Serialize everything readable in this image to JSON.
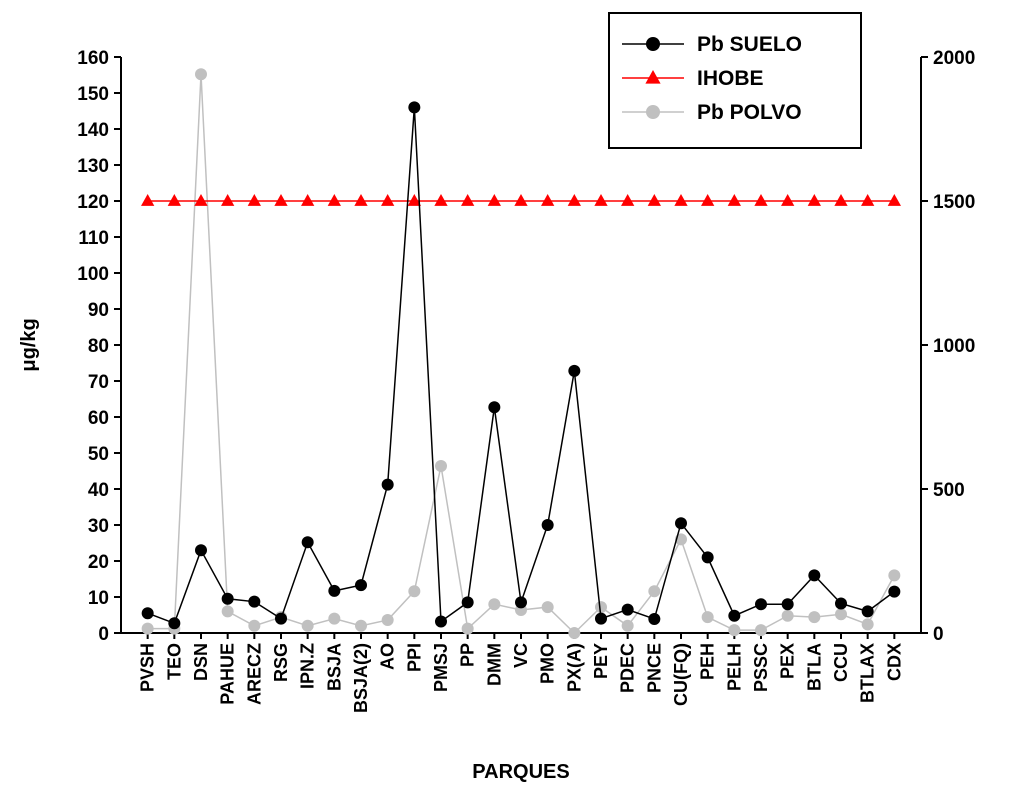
{
  "chart_data": {
    "type": "line",
    "xlabel": "PARQUES",
    "ylabel": "μg/kg",
    "ylim": [
      0,
      160
    ],
    "yticks": [
      0,
      10,
      20,
      30,
      40,
      50,
      60,
      70,
      80,
      90,
      100,
      110,
      120,
      130,
      140,
      150,
      160
    ],
    "y2lim": [
      0,
      2000
    ],
    "y2ticks": [
      0,
      500,
      1000,
      1500,
      2000
    ],
    "grid": false,
    "legend_position": "top-right",
    "categories": [
      "PVSH",
      "TEO",
      "DSN",
      "PAHUE",
      "ARECZ",
      "RSG",
      "IPN.Z",
      "BSJA",
      "BSJA(2)",
      "AO",
      "PPI",
      "PMSJ",
      "PP",
      "DMM",
      "VC",
      "PMO",
      "PX(A)",
      "PEY",
      "PDEC",
      "PNCE",
      "CU(FQ)",
      "PEH",
      "PELH",
      "PSSC",
      "PEX",
      "BTLA",
      "CCU",
      "BTLAX",
      "CDX"
    ],
    "series": [
      {
        "name": "Pb SUELO",
        "axis": "left",
        "color": "#000000",
        "marker": "circle",
        "values": [
          5.5,
          2.7,
          23.0,
          9.5,
          8.7,
          4.0,
          25.2,
          11.7,
          13.3,
          41.2,
          146.0,
          3.2,
          8.5,
          62.7,
          8.5,
          30.0,
          72.8,
          4.0,
          6.5,
          3.9,
          30.5,
          21.0,
          4.8,
          8.0,
          8.0,
          16.0,
          8.2,
          6.0,
          11.5
        ]
      },
      {
        "name": "IHOBE",
        "axis": "left",
        "color": "#ff0000",
        "marker": "triangle",
        "values": [
          120,
          120,
          120,
          120,
          120,
          120,
          120,
          120,
          120,
          120,
          120,
          120,
          120,
          120,
          120,
          120,
          120,
          120,
          120,
          120,
          120,
          120,
          120,
          120,
          120,
          120,
          120,
          120,
          120
        ]
      },
      {
        "name": "Pb POLVO",
        "axis": "right",
        "color": "#c0c0c0",
        "marker": "circle",
        "values": [
          15,
          15,
          1940,
          75,
          25,
          55,
          25,
          50,
          25,
          45,
          145,
          580,
          15,
          100,
          80,
          90,
          0,
          90,
          25,
          145,
          325,
          55,
          10,
          10,
          60,
          55,
          65,
          30,
          200
        ]
      }
    ]
  }
}
